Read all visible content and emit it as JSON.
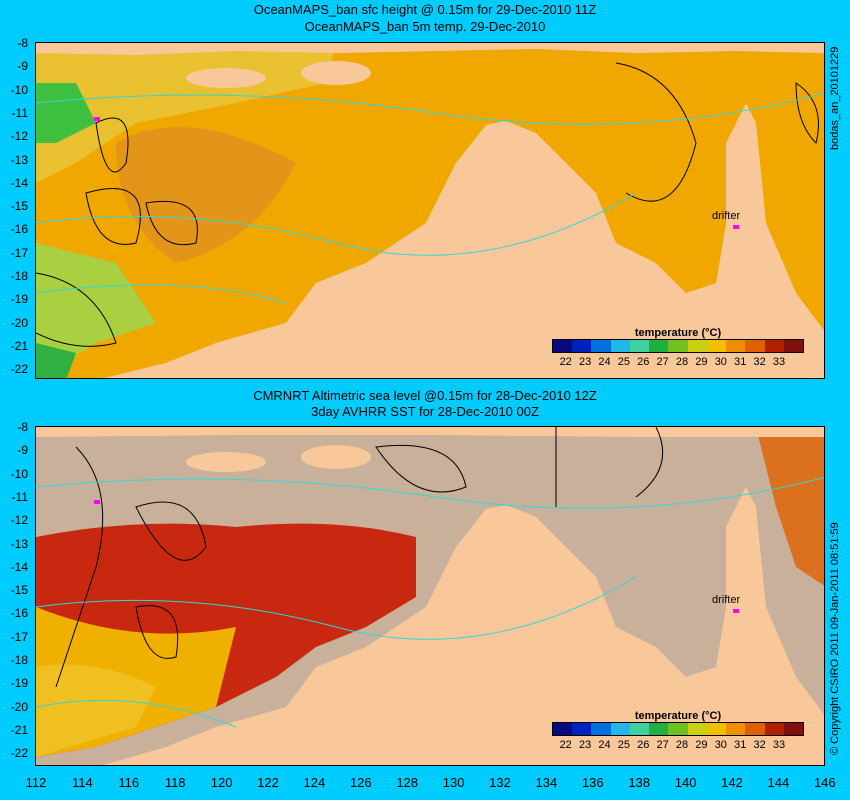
{
  "top": {
    "title1": "OceanMAPS_ban sfc height @ 0.15m for 29-Dec-2010 11Z",
    "title2": "OceanMAPS_ban 5m temp. 29-Dec-2010",
    "side_label": "bodas_an_20101229",
    "drifter": "drifter"
  },
  "bottom": {
    "title1": "CMRNRT Altimetric sea level  @0.15m  for 28-Dec-2010 12Z",
    "title2": "3day AVHRR SST for 28-Dec-2010 00Z",
    "side_label": "© Copyright CSIRO 2011   09-Jan-2011 08:51:59",
    "drifter": "drifter"
  },
  "legend": {
    "title": "temperature (°C)",
    "ticks": [
      "22",
      "23",
      "24",
      "25",
      "26",
      "27",
      "28",
      "29",
      "30",
      "31",
      "32",
      "33"
    ],
    "colors": [
      "#0a0a80",
      "#0020c0",
      "#0070e0",
      "#20b8e8",
      "#40d0a0",
      "#20b040",
      "#70c020",
      "#c8d010",
      "#f0c000",
      "#f09000",
      "#e06000",
      "#b02000",
      "#801010"
    ]
  },
  "axes": {
    "lat_ticks": [
      "-8",
      "-9",
      "-10",
      "-11",
      "-12",
      "-13",
      "-14",
      "-15",
      "-16",
      "-17",
      "-18",
      "-19",
      "-20",
      "-21",
      "-22"
    ],
    "lon_ticks": [
      "112",
      "114",
      "116",
      "118",
      "120",
      "122",
      "124",
      "126",
      "128",
      "130",
      "132",
      "134",
      "136",
      "138",
      "140",
      "142",
      "144",
      "146"
    ]
  },
  "colors": {
    "frame": "#00ccff",
    "land": "#f9c89a",
    "nodata": "#c8b09a",
    "drifter": "#ff00ff"
  }
}
